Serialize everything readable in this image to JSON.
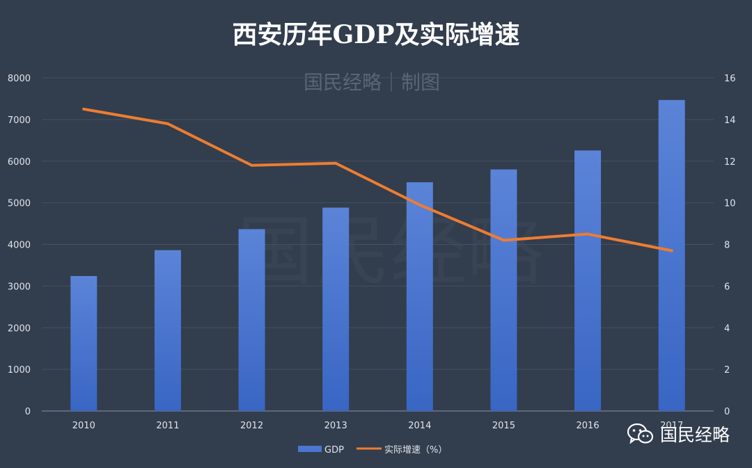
{
  "header": {
    "title": "西安历年GDP及实际增速",
    "subtitle": "国民经略｜制图"
  },
  "watermark": {
    "text": "国民经略"
  },
  "brand": {
    "icon": "wechat-icon",
    "text": "国民经略"
  },
  "colors": {
    "bar_top": "#5a82d6",
    "bar_bottom": "#3a68c6",
    "line": "#ed7d31",
    "background": "#323d4e"
  },
  "chart_data": {
    "type": "bar+line",
    "title": "西安历年GDP及实际增速",
    "categories": [
      "2010",
      "2011",
      "2012",
      "2013",
      "2014",
      "2015",
      "2016",
      "2017"
    ],
    "series": [
      {
        "name": "GDP",
        "type": "bar",
        "axis": "left",
        "values": [
          3241,
          3863,
          4367,
          4884,
          5493,
          5801,
          6257,
          7469
        ]
      },
      {
        "name": "实际增速（%）",
        "type": "line",
        "axis": "right",
        "values": [
          14.5,
          13.8,
          11.8,
          11.9,
          9.9,
          8.2,
          8.5,
          7.7
        ]
      }
    ],
    "y_left": {
      "min": 0,
      "max": 8000,
      "step": 1000
    },
    "y_right": {
      "min": 0,
      "max": 16,
      "step": 2
    },
    "grid": true,
    "legend": "bottom"
  }
}
